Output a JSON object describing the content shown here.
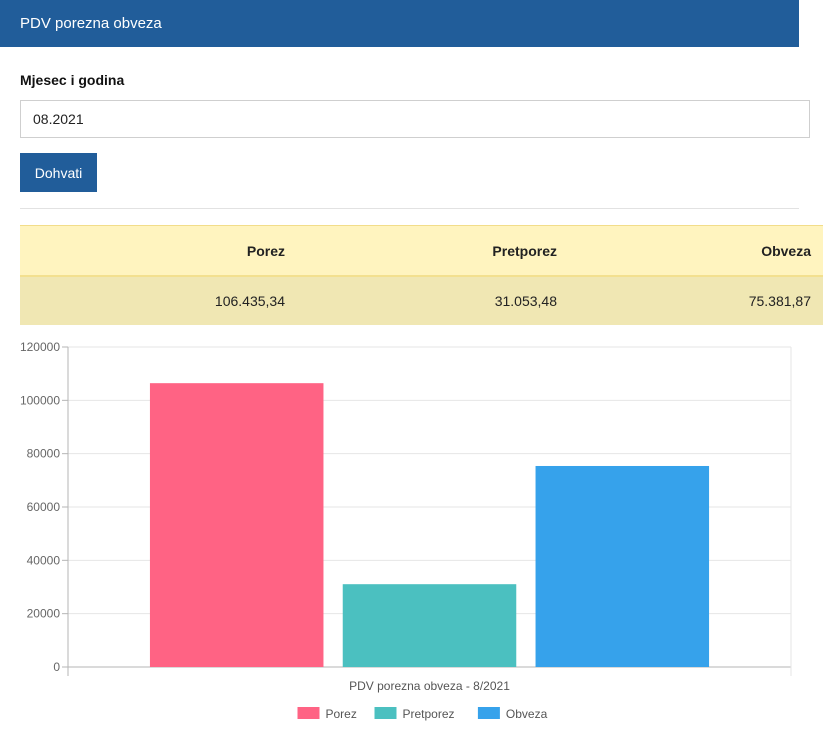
{
  "header": {
    "title": "PDV porezna obveza"
  },
  "form": {
    "month_label": "Mjesec i godina",
    "month_value": "08.2021",
    "fetch_label": "Dohvati"
  },
  "summary": {
    "headers": [
      "Porez",
      "Pretporez",
      "Obveza"
    ],
    "values": [
      "106.435,34",
      "31.053,48",
      "75.381,87"
    ],
    "colors": {
      "header_bg": "#fff4bf",
      "row_bg": "#f0e7b3"
    }
  },
  "chart_data": {
    "type": "bar",
    "xlabel": "PDV porezna obveza - 8/2021",
    "ylim": [
      0,
      120000
    ],
    "yticks": [
      0,
      20000,
      40000,
      60000,
      80000,
      100000,
      120000
    ],
    "grid": true,
    "legend_position": "bottom",
    "series": [
      {
        "name": "Porez",
        "value": 106435.34,
        "color": "#ff6384"
      },
      {
        "name": "Pretporez",
        "value": 31053.48,
        "color": "#4bc0c0"
      },
      {
        "name": "Obveza",
        "value": 75381.87,
        "color": "#36a2eb"
      }
    ]
  },
  "colors": {
    "brand": "#215d9a"
  }
}
